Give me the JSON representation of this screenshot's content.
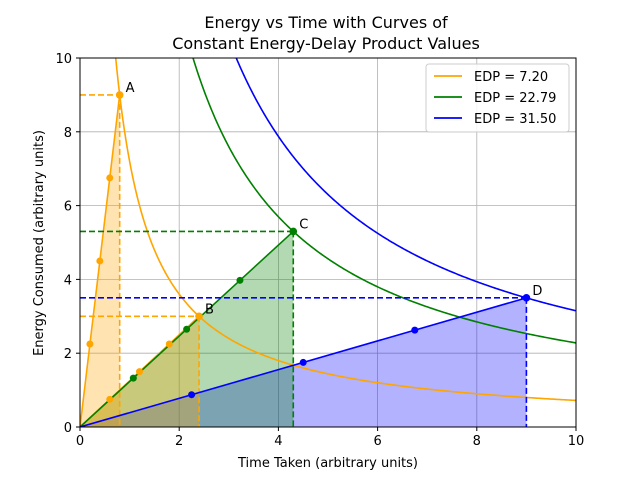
{
  "chart_data": {
    "type": "line",
    "title_line1": "Energy vs Time with Curves of",
    "title_line2": "Constant Energy-Delay Product Values",
    "xlabel": "Time Taken (arbitrary units)",
    "ylabel": "Energy Consumed (arbitrary units)",
    "xlim": [
      0,
      10
    ],
    "ylim": [
      0,
      10
    ],
    "xticks": [
      0,
      2,
      4,
      6,
      8,
      10
    ],
    "yticks": [
      0,
      2,
      4,
      6,
      8,
      10
    ],
    "grid": true,
    "legend_position": "top-right",
    "series": [
      {
        "name": "EDP = 7.20",
        "edp": 7.2,
        "color": "#ffa500"
      },
      {
        "name": "EDP = 22.79",
        "edp": 22.79,
        "color": "#008000"
      },
      {
        "name": "EDP = 31.50",
        "edp": 31.5,
        "color": "#0000ff"
      }
    ],
    "points": [
      {
        "label": "A",
        "x": 0.8,
        "y": 9.0,
        "color": "#ffa500"
      },
      {
        "label": "B",
        "x": 2.4,
        "y": 3.0,
        "color": "#ffa500"
      },
      {
        "label": "C",
        "x": 4.3,
        "y": 5.3,
        "color": "#008000"
      },
      {
        "label": "D",
        "x": 9.0,
        "y": 3.5,
        "color": "#0000ff"
      }
    ],
    "marker_fractions": [
      0.25,
      0.5,
      0.75
    ]
  }
}
